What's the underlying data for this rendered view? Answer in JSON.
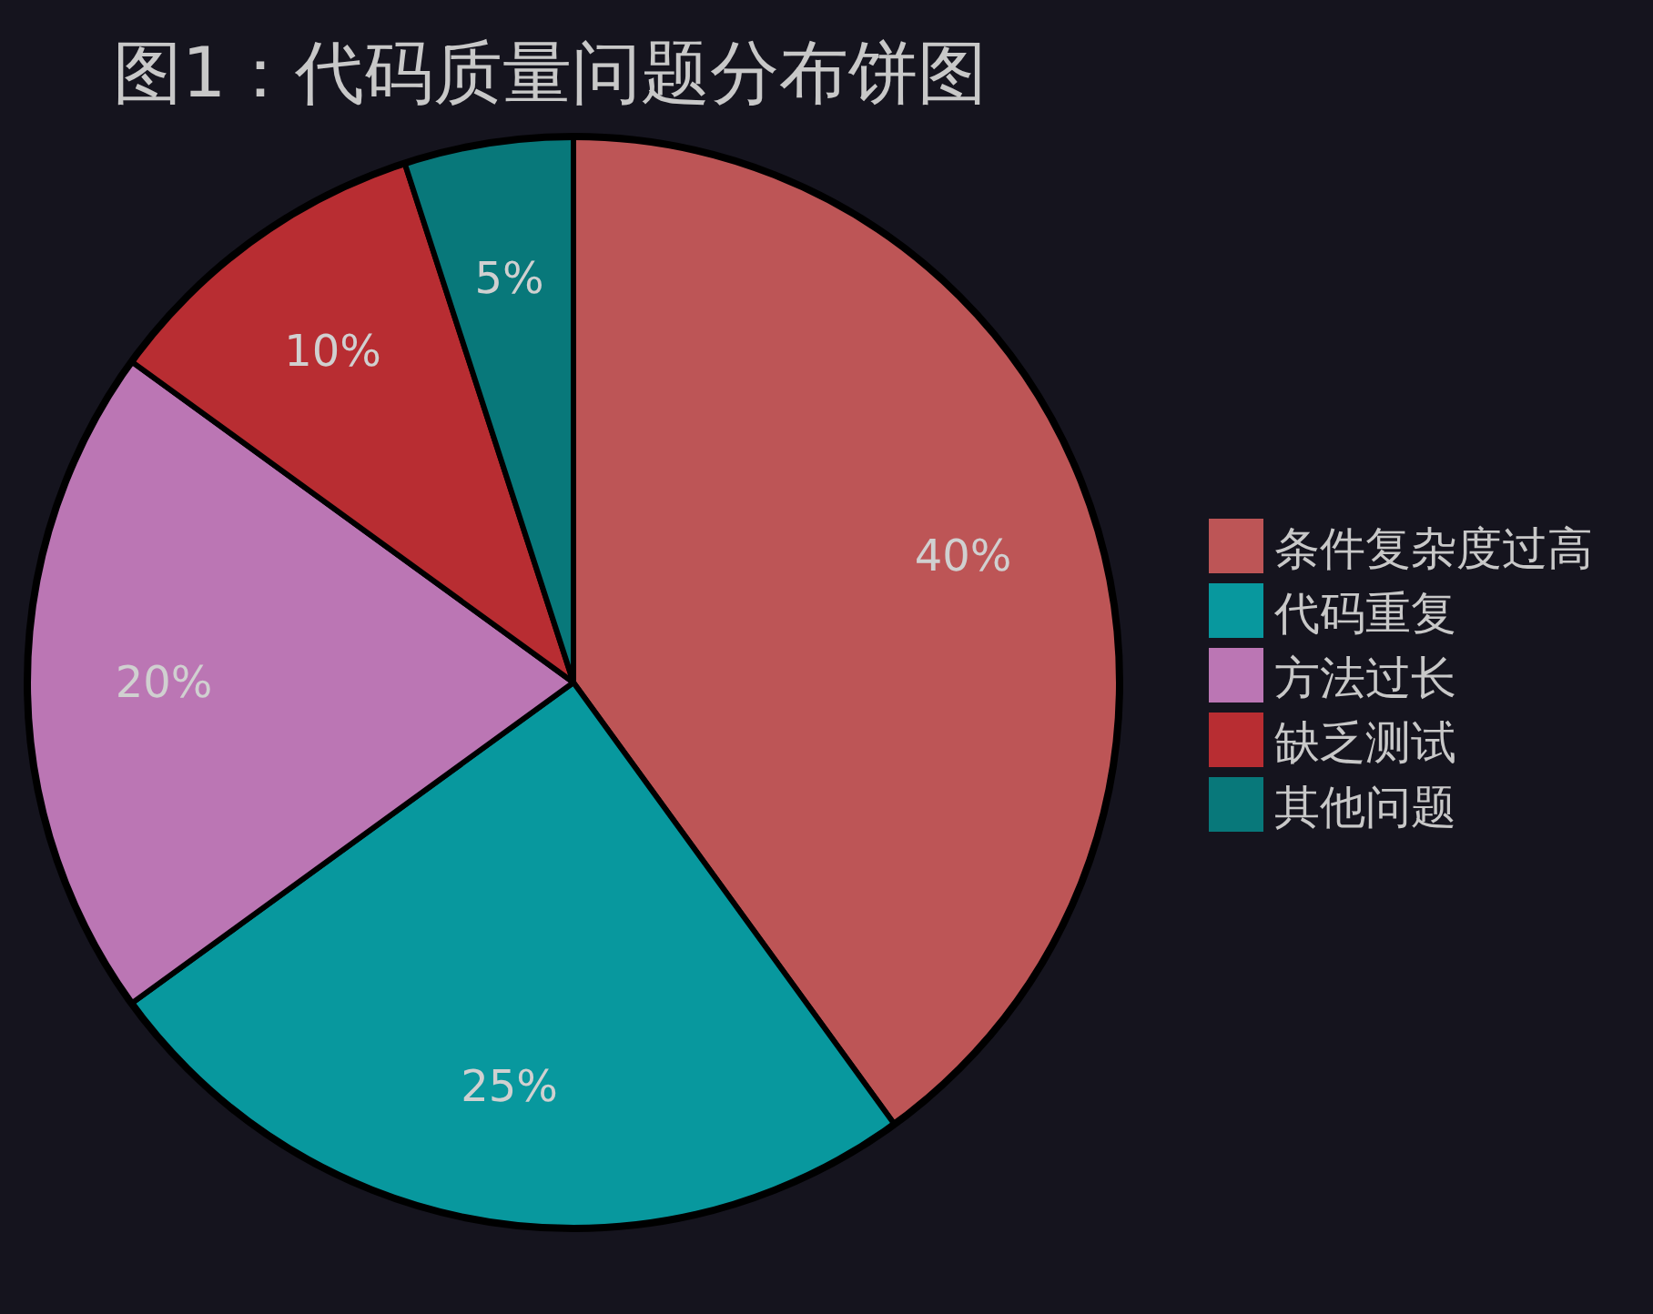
{
  "chart_data": {
    "type": "pie",
    "title": "图1：代码质量问题分布饼图",
    "categories": [
      "条件复杂度过高",
      "代码重复",
      "方法过长",
      "缺乏测试",
      "其他问题"
    ],
    "values": [
      40,
      25,
      20,
      10,
      5
    ],
    "colors": [
      "#bd5556",
      "#08989e",
      "#bb76b4",
      "#b82d32",
      "#08787a"
    ],
    "value_labels": [
      "40%",
      "25%",
      "20%",
      "10%",
      "5%"
    ],
    "legend": "right"
  }
}
